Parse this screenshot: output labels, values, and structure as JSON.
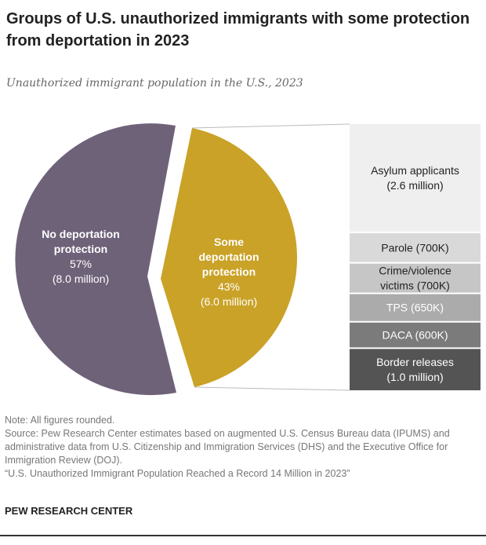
{
  "title": "Groups of U.S. unauthorized immigrants with some protection from deportation in 2023",
  "subtitle": "Unauthorized immigrant population in the U.S., 2023",
  "chart_data": {
    "type": "pie",
    "title": "Groups of U.S. unauthorized immigrants with some protection from deportation in 2023",
    "subtitle": "Unauthorized immigrant population in the U.S., 2023",
    "slices": [
      {
        "label": "No deportation protection",
        "pct_label": "57%",
        "amount_label": "(8.0 million)",
        "value": 57,
        "millions": 8.0,
        "color": "#6e6279"
      },
      {
        "label": "Some deportation protection",
        "pct_label": "43%",
        "amount_label": "(6.0 million)",
        "value": 43,
        "millions": 6.0,
        "color": "#c9a227"
      }
    ],
    "breakdown": {
      "type": "stacked-bar",
      "of": "Some deportation protection",
      "segments": [
        {
          "lines": [
            "Asylum applicants",
            "(2.6 million)"
          ],
          "value_thousands": 2600,
          "color": "#efefef",
          "text_color": "#222"
        },
        {
          "lines": [
            "Parole (700K)"
          ],
          "value_thousands": 700,
          "color": "#d9d9d9",
          "text_color": "#222"
        },
        {
          "lines": [
            "Crime/violence",
            "victims (700K)"
          ],
          "value_thousands": 700,
          "color": "#c6c6c6",
          "text_color": "#222"
        },
        {
          "lines": [
            "TPS (650K)"
          ],
          "value_thousands": 650,
          "color": "#ababab",
          "text_color": "#ffffff"
        },
        {
          "lines": [
            "DACA (600K)"
          ],
          "value_thousands": 600,
          "color": "#7b7b7b",
          "text_color": "#ffffff"
        },
        {
          "lines": [
            "Border releases",
            "(1.0 million)"
          ],
          "value_thousands": 1000,
          "color": "#545454",
          "text_color": "#ffffff"
        }
      ]
    }
  },
  "notes": {
    "note": "Note: All figures rounded.",
    "source": "Source: Pew Research Center estimates based on augmented U.S. Census Bureau data (IPUMS) and administrative data from U.S. Citizenship and Immigration Services (DHS) and the Executive Office for Immigration Review (DOJ).",
    "report": "“U.S. Unauthorized Immigrant Population Reached a Record 14 Million in 2023”"
  },
  "brand": "PEW RESEARCH CENTER"
}
